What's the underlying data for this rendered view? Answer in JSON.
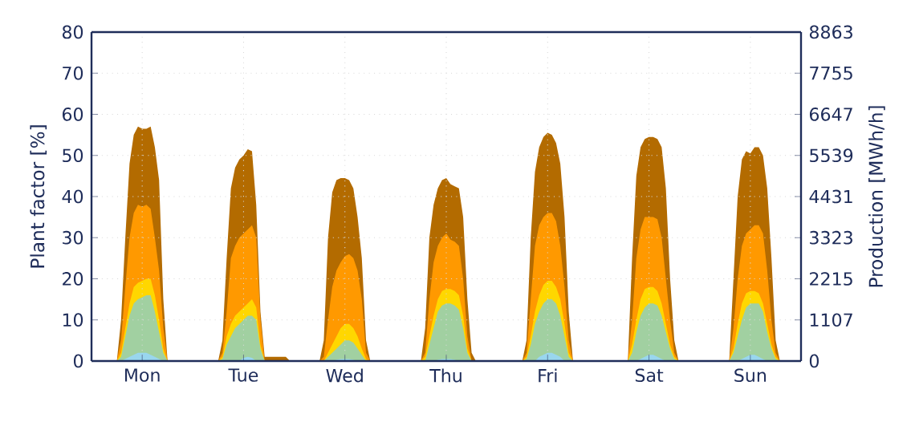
{
  "chart_data": {
    "type": "area",
    "ylabel": "Plant factor [%]",
    "y2label": "Production [MWh/h]",
    "categories": [
      null,
      null,
      null,
      null,
      null,
      null,
      null,
      null,
      null,
      null,
      null,
      null,
      "Mon",
      null,
      null,
      null,
      null,
      null,
      null,
      null,
      null,
      null,
      null,
      null,
      null,
      null,
      null,
      null,
      null,
      null,
      null,
      null,
      null,
      null,
      null,
      null,
      "Tue",
      null,
      null,
      null,
      null,
      null,
      null,
      null,
      null,
      null,
      null,
      null,
      null,
      null,
      null,
      null,
      null,
      null,
      null,
      null,
      null,
      null,
      null,
      null,
      "Wed",
      null,
      null,
      null,
      null,
      null,
      null,
      null,
      null,
      null,
      null,
      null,
      null,
      null,
      null,
      null,
      null,
      null,
      null,
      null,
      null,
      null,
      null,
      null,
      "Thu",
      null,
      null,
      null,
      null,
      null,
      null,
      null,
      null,
      null,
      null,
      null,
      null,
      null,
      null,
      null,
      null,
      null,
      null,
      null,
      null,
      null,
      null,
      null,
      "Fri",
      null,
      null,
      null,
      null,
      null,
      null,
      null,
      null,
      null,
      null,
      null,
      null,
      null,
      null,
      null,
      null,
      null,
      null,
      null,
      null,
      null,
      null,
      null,
      "Sat",
      null,
      null,
      null,
      null,
      null,
      null,
      null,
      null,
      null,
      null,
      null,
      null,
      null,
      null,
      null,
      null,
      null,
      null,
      null,
      null,
      null,
      null,
      null,
      "Sun",
      null,
      null,
      null,
      null,
      null,
      null,
      null,
      null,
      null,
      null,
      null
    ],
    "ylim": [
      0,
      80
    ],
    "yticks": [
      0,
      10,
      20,
      30,
      40,
      50,
      60,
      70,
      80
    ],
    "y2lim": [
      0,
      8863
    ],
    "y2ticks": [
      0,
      1107,
      2215,
      3323,
      4431,
      5539,
      6647,
      7755,
      8863
    ],
    "grid": true,
    "series": [
      {
        "color": "#b36b00",
        "values": [
          0,
          0,
          0,
          0,
          0,
          0,
          0,
          10,
          30,
          48,
          55,
          57,
          56.5,
          56.5,
          57,
          52,
          44,
          15,
          0,
          0,
          0,
          0,
          0,
          0,
          0,
          0,
          0,
          0,
          0,
          0,
          0,
          5,
          25,
          42,
          47,
          49,
          50,
          51.5,
          51,
          38,
          12,
          1,
          1,
          1,
          1,
          1,
          1,
          0,
          0,
          0,
          0,
          0,
          0,
          0,
          0,
          5,
          30,
          41,
          44,
          44.5,
          44.5,
          44,
          42,
          35,
          25,
          5,
          0,
          0,
          0,
          0,
          0,
          0,
          0,
          0,
          0,
          0,
          0,
          0,
          0,
          8,
          30,
          38,
          42,
          44,
          44.5,
          43,
          42.5,
          42,
          35,
          15,
          2,
          0,
          0,
          0,
          0,
          0,
          0,
          0,
          0,
          0,
          0,
          0,
          0,
          5,
          30,
          46,
          52,
          54.5,
          55.5,
          55,
          53,
          48,
          35,
          12,
          0,
          0,
          0,
          0,
          0,
          0,
          0,
          0,
          0,
          0,
          0,
          0,
          0,
          0,
          25,
          45,
          52,
          54,
          54.5,
          54.5,
          54,
          52,
          42,
          20,
          5,
          0,
          0,
          0,
          0,
          0,
          0,
          0,
          0,
          0,
          0,
          0,
          0,
          0,
          20,
          40,
          49,
          51,
          50.5,
          52,
          52,
          50,
          42,
          25,
          5,
          0,
          0,
          0,
          0,
          0
        ]
      },
      {
        "color": "#ff9900",
        "values": [
          0,
          0,
          0,
          0,
          0,
          0,
          0,
          5,
          18,
          30,
          36,
          38,
          37.5,
          38,
          37,
          30,
          22,
          8,
          0,
          0,
          0,
          0,
          0,
          0,
          0,
          0,
          0,
          0,
          0,
          0,
          0,
          2,
          12,
          25,
          28,
          30,
          31,
          32,
          33,
          30,
          10,
          0,
          0,
          0,
          0,
          0,
          0,
          0,
          0,
          0,
          0,
          0,
          0,
          0,
          0,
          1,
          10,
          18,
          22,
          24,
          25.5,
          26,
          25,
          22,
          15,
          2,
          0,
          0,
          0,
          0,
          0,
          0,
          0,
          0,
          0,
          0,
          0,
          0,
          0,
          2,
          15,
          24,
          28,
          30,
          31,
          29.5,
          29,
          28,
          20,
          6,
          0,
          0,
          0,
          0,
          0,
          0,
          0,
          0,
          0,
          0,
          0,
          0,
          0,
          2,
          15,
          28,
          33,
          35,
          36,
          36,
          34,
          28,
          18,
          5,
          0,
          0,
          0,
          0,
          0,
          0,
          0,
          0,
          0,
          0,
          0,
          0,
          0,
          0,
          10,
          25,
          32,
          35,
          35,
          35,
          34.5,
          30,
          20,
          10,
          2,
          0,
          0,
          0,
          0,
          0,
          0,
          0,
          0,
          0,
          0,
          0,
          0,
          0,
          8,
          20,
          28,
          31,
          32,
          33,
          33,
          31,
          22,
          10,
          2,
          0,
          0,
          0,
          0,
          0
        ]
      },
      {
        "color": "#ffd700",
        "values": [
          0,
          0,
          0,
          0,
          0,
          0,
          0,
          2,
          8,
          14,
          18,
          19,
          19.5,
          20,
          20,
          16,
          10,
          3,
          0,
          0,
          0,
          0,
          0,
          0,
          0,
          0,
          0,
          0,
          0,
          0,
          0,
          1,
          6,
          9,
          11,
          12,
          13,
          14,
          15,
          13,
          4,
          0,
          0,
          0,
          0,
          0,
          0,
          0,
          0,
          0,
          0,
          0,
          0,
          0,
          0,
          0,
          2,
          4,
          6,
          8,
          9,
          9,
          8,
          6,
          3,
          0.5,
          0,
          0,
          0,
          0,
          0,
          0,
          0,
          0,
          0,
          0,
          0,
          0,
          0,
          1,
          6,
          11,
          15,
          17,
          17.5,
          17.5,
          17,
          16,
          11,
          3,
          0,
          0,
          0,
          0,
          0,
          0,
          0,
          0,
          0,
          0,
          0,
          0,
          0,
          1,
          6,
          12,
          16,
          18.5,
          19.5,
          19.5,
          18,
          15,
          9,
          2,
          0,
          0,
          0,
          0,
          0,
          0,
          0,
          0,
          0,
          0,
          0,
          0,
          0,
          0,
          4,
          10,
          15,
          17.5,
          18,
          18,
          17,
          14,
          9,
          4,
          1,
          0,
          0,
          0,
          0,
          0,
          0,
          0,
          0,
          0,
          0,
          0,
          0,
          0,
          3,
          9,
          14,
          16.5,
          17,
          17,
          16.5,
          14,
          9,
          4,
          1,
          0,
          0,
          0,
          0,
          0
        ]
      },
      {
        "color": "#a1d0a1",
        "values": [
          0,
          0,
          0,
          0,
          0,
          0,
          0,
          1,
          6,
          11,
          14,
          15,
          15.5,
          16,
          16,
          12,
          7,
          2,
          0,
          0,
          0,
          0,
          0,
          0,
          0,
          0,
          0,
          0,
          0,
          0,
          0,
          0.5,
          4,
          6,
          8,
          9,
          10,
          11,
          11,
          10,
          3,
          0,
          0,
          0,
          0,
          0,
          0,
          0,
          0,
          0,
          0,
          0,
          0,
          0,
          0,
          0,
          1,
          2,
          3,
          4,
          5,
          5,
          4.5,
          3,
          1.5,
          0,
          0,
          0,
          0,
          0,
          0,
          0,
          0,
          0,
          0,
          0,
          0,
          0,
          0,
          0,
          4,
          8,
          12,
          13.5,
          14,
          14,
          13.5,
          12.5,
          8,
          2,
          0,
          0,
          0,
          0,
          0,
          0,
          0,
          0,
          0,
          0,
          0,
          0,
          0,
          0.5,
          4,
          9,
          12,
          14,
          15,
          15,
          14,
          11,
          6,
          1,
          0,
          0,
          0,
          0,
          0,
          0,
          0,
          0,
          0,
          0,
          0,
          0,
          0,
          0,
          2,
          7,
          11,
          13,
          14,
          14,
          13.5,
          11,
          7,
          3,
          0.5,
          0,
          0,
          0,
          0,
          0,
          0,
          0,
          0,
          0,
          0,
          0,
          0,
          0,
          2,
          6,
          10,
          13,
          14,
          14,
          14,
          12,
          7,
          3,
          0.5,
          0,
          0,
          0,
          0,
          0
        ]
      },
      {
        "color": "#99d6ee",
        "values": [
          0,
          0,
          0,
          0,
          0,
          0,
          0,
          0,
          0.5,
          1,
          1.5,
          2,
          2,
          2,
          1.5,
          1,
          0.5,
          0,
          0,
          0,
          0,
          0,
          0,
          0,
          0,
          0,
          0,
          0,
          0,
          0,
          0,
          0,
          0,
          0,
          0,
          0,
          0.8,
          1,
          0.8,
          0,
          0,
          0,
          0,
          0,
          0,
          0,
          0,
          0,
          0,
          0,
          0,
          0,
          0,
          0,
          0,
          0,
          0,
          0,
          0.3,
          0.5,
          0.5,
          0.5,
          0.3,
          0,
          0,
          0,
          0,
          0,
          0,
          0,
          0,
          0,
          0,
          0,
          0,
          0,
          0,
          0,
          0,
          0,
          0,
          0,
          0.3,
          0.5,
          0.5,
          0.5,
          0.3,
          0,
          0,
          0,
          0,
          0,
          0,
          0,
          0,
          0,
          0,
          0,
          0,
          0,
          0,
          0,
          0,
          0,
          0,
          0,
          1,
          1.5,
          2,
          2,
          1.5,
          1,
          0,
          0,
          0,
          0,
          0,
          0,
          0,
          0,
          0,
          0,
          0,
          0,
          0,
          0,
          0,
          0,
          0,
          0,
          0.5,
          1,
          1.5,
          1.5,
          1,
          0.5,
          0,
          0,
          0,
          0,
          0,
          0,
          0,
          0,
          0,
          0,
          0,
          0,
          0,
          0,
          0,
          0,
          0,
          0,
          0.5,
          1,
          1.5,
          1.5,
          1,
          0.5,
          0,
          0,
          0,
          0,
          0,
          0,
          0,
          0
        ]
      }
    ]
  }
}
